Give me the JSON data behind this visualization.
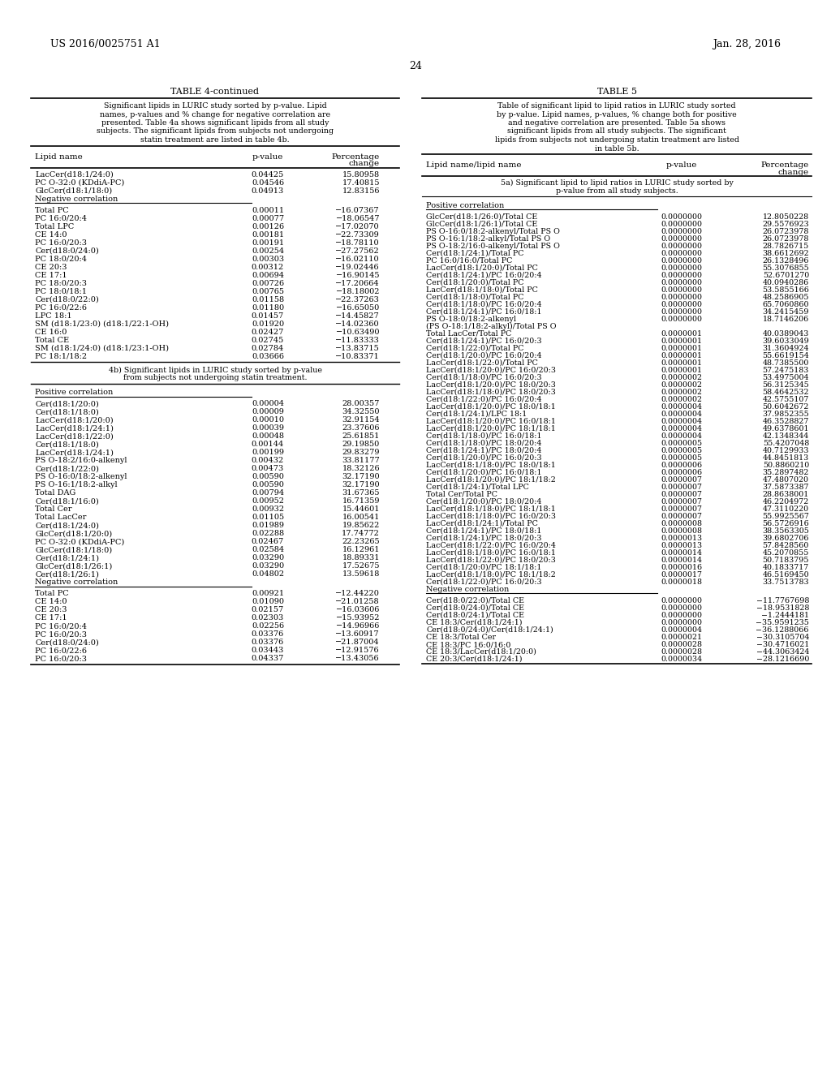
{
  "header_left": "US 2016/0025751 A1",
  "header_right": "Jan. 28, 2016",
  "page_number": "24",
  "table4_title": "TABLE 4-continued",
  "table4_caption_lines": [
    "Significant lipids in LURIC study sorted by p-value. Lipid",
    "names, p-values and % change for negative correlation are",
    "presented. Table 4a shows significant lipids from all study",
    "subjects. The significant lipids from subjects not undergoing",
    "statin treatment are listed in table 4b."
  ],
  "table4_pos_rows": [
    [
      "LacCer(d18:1/24:0)",
      "0.04425",
      "15.80958"
    ],
    [
      "PC O-32:0 (KDdiA-PC)",
      "0.04546",
      "17.40815"
    ],
    [
      "GlcCer(d18:1/18:0)",
      "0.04913",
      "12.83156"
    ]
  ],
  "table4_neg_rows": [
    [
      "Total PC",
      "0.00011",
      "−16.07367"
    ],
    [
      "PC 16:0/20:4",
      "0.00077",
      "−18.06547"
    ],
    [
      "Total LPC",
      "0.00126",
      "−17.02070"
    ],
    [
      "CE 14:0",
      "0.00181",
      "−22.73309"
    ],
    [
      "PC 16:0/20:3",
      "0.00191",
      "−18.78110"
    ],
    [
      "Cer(d18:0/24:0)",
      "0.00254",
      "−27.27562"
    ],
    [
      "PC 18:0/20:4",
      "0.00303",
      "−16.02110"
    ],
    [
      "CE 20:3",
      "0.00312",
      "−19.02446"
    ],
    [
      "CE 17:1",
      "0.00694",
      "−16.90145"
    ],
    [
      "PC 18:0/20:3",
      "0.00726",
      "−17.20664"
    ],
    [
      "PC 18:0/18:1",
      "0.00765",
      "−18.18002"
    ],
    [
      "Cer(d18:0/22:0)",
      "0.01158",
      "−22.37263"
    ],
    [
      "PC 16:0/22:6",
      "0.01180",
      "−16.65050"
    ],
    [
      "LPC 18:1",
      "0.01457",
      "−14.45827"
    ],
    [
      "SM (d18:1/23:0) (d18:1/22:1-OH)",
      "0.01920",
      "−14.02360"
    ],
    [
      "CE 16:0",
      "0.02427",
      "−10.63490"
    ],
    [
      "Total CE",
      "0.02745",
      "−11.83333"
    ],
    [
      "SM (d18:1/24:0) (d18:1/23:1-OH)",
      "0.02784",
      "−13.83715"
    ],
    [
      "PC 18:1/18:2",
      "0.03666",
      "−10.83371"
    ]
  ],
  "table4b_title_lines": [
    "4b) Significant lipids in LURIC study sorted by p-value",
    "from subjects not undergoing statin treatment."
  ],
  "table4b_pos_rows": [
    [
      "Cer(d18:1/20:0)",
      "0.00004",
      "28.00357"
    ],
    [
      "Cer(d18:1/18:0)",
      "0.00009",
      "34.32550"
    ],
    [
      "LacCer(d18:1/20:0)",
      "0.00010",
      "32.91154"
    ],
    [
      "LacCer(d18:1/24:1)",
      "0.00039",
      "23.37606"
    ],
    [
      "LacCer(d18:1/22:0)",
      "0.00048",
      "25.61851"
    ],
    [
      "Cer(d18:1/18:0)",
      "0.00144",
      "29.19850"
    ],
    [
      "LacCer(d18:1/24:1)",
      "0.00199",
      "29.83279"
    ],
    [
      "PS O-18:2/16:0-alkenyl",
      "0.00432",
      "33.81177"
    ],
    [
      "Cer(d18:1/22:0)",
      "0.00473",
      "18.32126"
    ],
    [
      "PS O-16:0/18:2-alkenyl",
      "0.00590",
      "32.17190"
    ],
    [
      "PS O-16:1/18:2-alkyl",
      "0.00590",
      "32.17190"
    ],
    [
      "Total DAG",
      "0.00794",
      "31.67365"
    ],
    [
      "Cer(d18:1/16:0)",
      "0.00952",
      "16.71359"
    ],
    [
      "Total Cer",
      "0.00932",
      "15.44601"
    ],
    [
      "Total LacCer",
      "0.01105",
      "16.00541"
    ],
    [
      "Cer(d18:1/24:0)",
      "0.01989",
      "19.85622"
    ],
    [
      "GlcCer(d18:1/20:0)",
      "0.02288",
      "17.74772"
    ],
    [
      "PC O-32:0 (KDdiA-PC)",
      "0.02467",
      "22.23265"
    ],
    [
      "GlcCer(d18:1/18:0)",
      "0.02584",
      "16.12961"
    ],
    [
      "Cer(d18:1/24:1)",
      "0.03290",
      "18.89331"
    ],
    [
      "GlcCer(d18:1/26:1)",
      "0.03290",
      "17.52675"
    ],
    [
      "Cer(d18:1/26:1)",
      "0.04802",
      "13.59618"
    ]
  ],
  "table4b_neg_rows": [
    [
      "Total PC",
      "0.00921",
      "−12.44220"
    ],
    [
      "CE 14:0",
      "0.01090",
      "−21.01258"
    ],
    [
      "CE 20:3",
      "0.02157",
      "−16.03606"
    ],
    [
      "CE 17:1",
      "0.02303",
      "−15.93952"
    ],
    [
      "PC 16:0/20:4",
      "0.02256",
      "−14.96966"
    ],
    [
      "PC 16:0/20:3",
      "0.03376",
      "−13.60917"
    ],
    [
      "Cer(d18:0/24:0)",
      "0.03376",
      "−21.87004"
    ],
    [
      "PC 16:0/22:6",
      "0.03443",
      "−12.91576"
    ],
    [
      "PC 16:0/20:3",
      "0.04337",
      "−13.43056"
    ]
  ],
  "table5_title": "TABLE 5",
  "table5_caption_lines": [
    "Table of significant lipid to lipid ratios in LURIC study sorted",
    "by p-value. Lipid names, p-values, % change both for positive",
    "and negative correlation are presented. Table 5a shows",
    "significant lipids from all study subjects. The significant",
    "lipids from subjects not undergoing statin treatment are listed",
    "in table 5b."
  ],
  "table5a_title_lines": [
    "5a) Significant lipid to lipid ratios in LURIC study sorted by",
    "p-value from all study subjects."
  ],
  "table5_pos_rows": [
    [
      "GlcCer(d18:1/26:0)/Total CE",
      "0.0000000",
      "12.8050228"
    ],
    [
      "GlcCer(d18:1/26:1)/Total CE",
      "0.0000000",
      "29.5576923"
    ],
    [
      "PS O-16:0/18:2-alkenyl/Total PS O",
      "0.0000000",
      "26.0723978"
    ],
    [
      "PS O-16:1/18:2-alkyl/Total PS O",
      "0.0000000",
      "26.0723978"
    ],
    [
      "PS O-18:2/16:0-alkenyl/Total PS O",
      "0.0000000",
      "28.7826715"
    ],
    [
      "Cer(d18:1/24:1)/Total PC",
      "0.0000000",
      "38.6612692"
    ],
    [
      "PC 16:0/16:0/Total PC",
      "0.0000000",
      "26.1328496"
    ],
    [
      "LacCer(d18:1/20:0)/Total PC",
      "0.0000000",
      "55.3076855"
    ],
    [
      "Cer(d18:1/24:1)/PC 16:0/20:4",
      "0.0000000",
      "52.6701270"
    ],
    [
      "Cer(d18:1/20:0)/Total PC",
      "0.0000000",
      "40.0940286"
    ],
    [
      "LacCer(d18:1/18:0)/Total PC",
      "0.0000000",
      "53.5855166"
    ],
    [
      "Cer(d18:1/18:0)/Total PC",
      "0.0000000",
      "48.2586905"
    ],
    [
      "Cer(d18:1/18:0)/PC 16:0/20:4",
      "0.0000000",
      "65.7060860"
    ],
    [
      "Cer(d18:1/24:1)/PC 16:0/18:1",
      "0.0000000",
      "34.2415459"
    ],
    [
      "PS O-18:0/18:2-alkenyl",
      "0.0000000",
      "18.7146206"
    ],
    [
      "(PS O-18:1/18:2-alkyl)/Total PS O",
      "",
      ""
    ],
    [
      "Total LacCer/Total PC",
      "0.0000001",
      "40.0389043"
    ],
    [
      "Cer(d18:1/24:1)/PC 16:0/20:3",
      "0.0000001",
      "39.6033049"
    ],
    [
      "Cer(d18:1/22:0)/Total PC",
      "0.0000001",
      "31.3604924"
    ],
    [
      "Cer(d18:1/20:0)/PC 16:0/20:4",
      "0.0000001",
      "55.6619154"
    ],
    [
      "LacCer(d18:1/22:0)/Total PC",
      "0.0000001",
      "48.7385500"
    ],
    [
      "LacCer(d18:1/20:0)/PC 16:0/20:3",
      "0.0000001",
      "57.2475183"
    ],
    [
      "Cer(d18:1/18:0)/PC 16:0/20:3",
      "0.0000002",
      "53.4975004"
    ],
    [
      "LacCer(d18:1/20:0)/PC 18:0/20:3",
      "0.0000002",
      "56.3125345"
    ],
    [
      "LacCer(d18:1/18:0)/PC 18:0/20:3",
      "0.0000002",
      "58.4642532"
    ],
    [
      "Cer(d18:1/22:0)/PC 16:0/20:4",
      "0.0000002",
      "42.5755107"
    ],
    [
      "LacCer(d18:1/20:0)/PC 18:0/18:1",
      "0.0000004",
      "50.6042672"
    ],
    [
      "Cer(d18:1/24:1)/LPC 18:1",
      "0.0000004",
      "37.9852355"
    ],
    [
      "LacCer(d18:1/20:0)/PC 16:0/18:1",
      "0.0000004",
      "46.3528827"
    ],
    [
      "LacCer(d18:1/20:0)/PC 18:1/18:1",
      "0.0000004",
      "49.6378601"
    ],
    [
      "Cer(d18:1/18:0)/PC 16:0/18:1",
      "0.0000004",
      "42.1348344"
    ],
    [
      "Cer(d18:1/18:0)/PC 18:0/20:4",
      "0.0000005",
      "55.4207048"
    ],
    [
      "Cer(d18:1/24:1)/PC 18:0/20:4",
      "0.0000005",
      "40.7129933"
    ],
    [
      "Cer(d18:1/20:0)/PC 16:0/20:3",
      "0.0000005",
      "44.8451813"
    ],
    [
      "LacCer(d18:1/18:0)/PC 18:0/18:1",
      "0.0000006",
      "50.8860210"
    ],
    [
      "Cer(d18:1/20:0)/PC 16:0/18:1",
      "0.0000006",
      "35.2897482"
    ],
    [
      "LacCer(d18:1/20:0)/PC 18:1/18:2",
      "0.0000007",
      "47.4807020"
    ],
    [
      "Cer(d18:1/24:1)/Total LPC",
      "0.0000007",
      "37.5873387"
    ],
    [
      "Total Cer/Total PC",
      "0.0000007",
      "28.8638001"
    ],
    [
      "Cer(d18:1/20:0)/PC 18:0/20:4",
      "0.0000007",
      "46.2204972"
    ],
    [
      "LacCer(d18:1/18:0)/PC 18:1/18:1",
      "0.0000007",
      "47.3110220"
    ],
    [
      "LacCer(d18:1/18:0)/PC 16:0/20:3",
      "0.0000007",
      "55.9925567"
    ],
    [
      "LacCer(d18:1/24:1)/Total PC",
      "0.0000008",
      "56.5726916"
    ],
    [
      "Cer(d18:1/24:1)/PC 18:0/18:1",
      "0.0000008",
      "38.3563305"
    ],
    [
      "Cer(d18:1/24:1)/PC 18:0/20:3",
      "0.0000013",
      "39.6802706"
    ],
    [
      "LacCer(d18:1/22:0)/PC 16:0/20:4",
      "0.0000013",
      "57.8428560"
    ],
    [
      "LacCer(d18:1/18:0)/PC 16:0/18:1",
      "0.0000014",
      "45.2070855"
    ],
    [
      "LacCer(d18:1/22:0)/PC 18:0/20:3",
      "0.0000014",
      "50.7183795"
    ],
    [
      "Cer(d18:1/20:0)/PC 18:1/18:1",
      "0.0000016",
      "40.1833717"
    ],
    [
      "LacCer(d18:1/18:0)/PC 18:1/18:2",
      "0.0000017",
      "46.5169450"
    ],
    [
      "Cer(d18:1/22:0)/PC 16:0/20:3",
      "0.0000018",
      "33.7513783"
    ]
  ],
  "table5_neg_rows": [
    [
      "Cer(d18:0/22:0)/Total CE",
      "0.0000000",
      "−11.7767698"
    ],
    [
      "Cer(d18:0/24:0)/Total CE",
      "0.0000000",
      "−18.9531828"
    ],
    [
      "Cer(d18:0/24:1)/Total CE",
      "0.0000000",
      "−1.2444181"
    ],
    [
      "CE 18:3/Cer(d18:1/24:1)",
      "0.0000000",
      "−35.9591235"
    ],
    [
      "Cer(d18:0/24:0)/Cer(d18:1/24:1)",
      "0.0000004",
      "−36.1288066"
    ],
    [
      "CE 18:3/Total Cer",
      "0.0000021",
      "−30.3105704"
    ],
    [
      "CE 18:3/PC 16:0/16:0",
      "0.0000028",
      "−30.4716021"
    ],
    [
      "CE 18:3/LacCer(d18:1/20:0)",
      "0.0000028",
      "−44.3063424"
    ],
    [
      "CE 20:3/Cer(d18:1/24:1)",
      "0.0000034",
      "−28.1216690"
    ]
  ]
}
